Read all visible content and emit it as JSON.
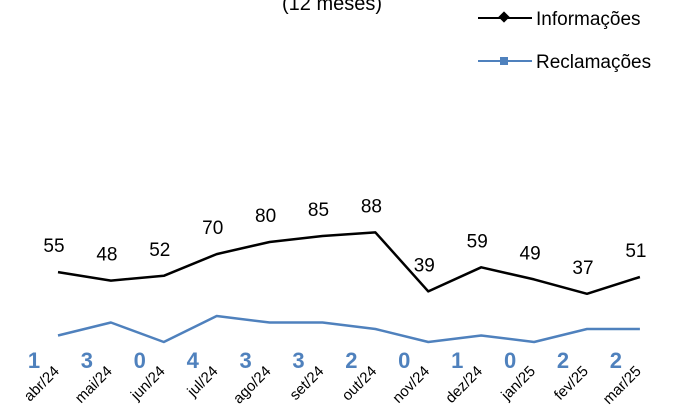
{
  "chart_data": {
    "type": "line",
    "subtitle": "(12 meses)",
    "categories": [
      "abr/24",
      "mai/24",
      "jun/24",
      "jul/24",
      "ago/24",
      "set/24",
      "out/24",
      "nov/24",
      "dez/24",
      "jan/25",
      "fev/25",
      "mar/25"
    ],
    "series": [
      {
        "name": "Informações",
        "values": [
          55,
          48,
          52,
          70,
          80,
          85,
          88,
          39,
          59,
          49,
          37,
          51
        ],
        "color": "#000000",
        "marker": "diamond"
      },
      {
        "name": "Reclamações",
        "values": [
          1,
          3,
          0,
          4,
          3,
          3,
          2,
          0,
          1,
          0,
          2,
          2
        ],
        "color": "#4f81bd",
        "marker": "square"
      }
    ],
    "legend_position": "top-right",
    "grid": false
  }
}
